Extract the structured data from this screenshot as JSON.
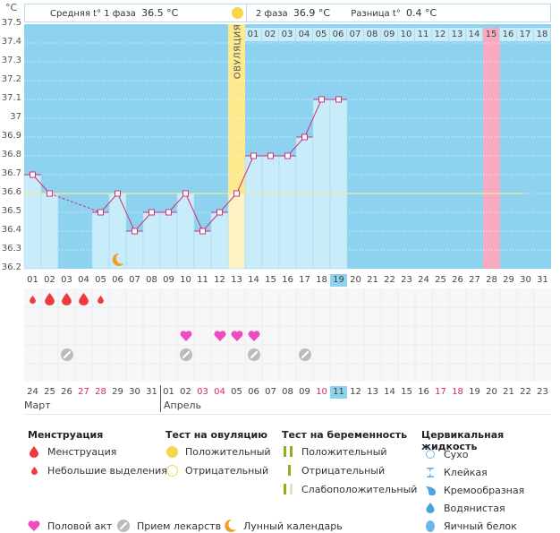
{
  "header": {
    "unit": "°C",
    "phase1_label": "Средняя t° 1 фаза",
    "phase1_value": "36.5 °C",
    "phase2_label": "2 фаза",
    "phase2_value": "36.9 °C",
    "diff_label": "Разница t°",
    "diff_value": "0.4 °C",
    "ovulation_label": "ОВУЛЯЦИЯ"
  },
  "chart_data": {
    "type": "line",
    "title": "",
    "xlabel": "Cycle day",
    "ylabel": "°C",
    "ylim": [
      36.2,
      37.5
    ],
    "y_ticks": [
      "37.5",
      "37.4",
      "37.3",
      "37.2",
      "37.1",
      "37",
      "36.9",
      "36.8",
      "36.7",
      "36.6",
      "36.5",
      "36.4",
      "36.3",
      "36.2"
    ],
    "cycle_days": [
      "01",
      "02",
      "03",
      "04",
      "05",
      "06",
      "07",
      "08",
      "09",
      "10",
      "11",
      "12",
      "13",
      "14",
      "15",
      "16",
      "17",
      "18",
      "19",
      "20",
      "21",
      "22",
      "23",
      "24",
      "25",
      "26",
      "27",
      "28",
      "29",
      "30",
      "31"
    ],
    "series": [
      {
        "name": "Базальная температура",
        "values": [
          36.7,
          36.6,
          null,
          null,
          36.5,
          36.6,
          36.4,
          36.5,
          36.5,
          36.6,
          36.4,
          36.5,
          36.6,
          36.8,
          36.8,
          36.8,
          36.9,
          37.1,
          37.1,
          null,
          null,
          null,
          null,
          null,
          null,
          null,
          null,
          null,
          null,
          null,
          null
        ]
      }
    ],
    "coverline": 36.6,
    "coverline_end_day": 30,
    "ovulation_day": 13,
    "current_day": 19,
    "expected_period_day": 28,
    "luteal_day_labels": [
      "01",
      "02",
      "03",
      "04",
      "05",
      "06",
      "07",
      "08",
      "09",
      "10",
      "11",
      "12",
      "13",
      "14",
      "15",
      "16",
      "17",
      "18"
    ],
    "luteal_highlight_label": "15",
    "calendar_dates": [
      "24",
      "25",
      "26",
      "27",
      "28",
      "29",
      "30",
      "31",
      "01",
      "02",
      "03",
      "04",
      "05",
      "06",
      "07",
      "08",
      "09",
      "10",
      "11",
      "12",
      "13",
      "14",
      "15",
      "16",
      "17",
      "18",
      "19",
      "20",
      "21",
      "22",
      "23"
    ],
    "weekend_dates_idx": [
      3,
      4,
      10,
      11,
      17,
      24,
      25
    ],
    "today_calendar_idx": 18,
    "months": [
      {
        "label": "Март",
        "start_idx": 0
      },
      {
        "label": "Апрель",
        "start_idx": 8
      }
    ],
    "menstruation": {
      "days": [
        1,
        2,
        3,
        4,
        5
      ],
      "types": [
        "light",
        "heavy",
        "heavy",
        "heavy",
        "light"
      ]
    },
    "intercourse_days": [
      10,
      12,
      13,
      14
    ],
    "medication_days": [
      3,
      10,
      14,
      17
    ],
    "moon_days": [
      6
    ],
    "colors": {
      "bg_empty": "#8dd3ef",
      "bar_fill": "#c9ecfa",
      "ovulation": "#fde98e",
      "expected_period": "#f8aac3",
      "line": "#d0307a",
      "coverline": "#f3e79c",
      "menstruation": "#ee3a3f",
      "heart": "#f04ac0",
      "pill": "#bcbcbc",
      "moon": "#f39b1c"
    }
  },
  "legend": {
    "menstruation": {
      "title": "Менструация",
      "items": [
        "Менструация",
        "Небольшие выделения"
      ]
    },
    "ovulation_test": {
      "title": "Тест на овуляцию",
      "items": [
        "Положительный",
        "Отрицательный"
      ]
    },
    "pregnancy_test": {
      "title": "Тест на беременность",
      "items": [
        "Положительный",
        "Отрицательный",
        "Слабоположительный"
      ]
    },
    "cervical_fluid": {
      "title": "Цервикальная жидкость",
      "items": [
        "Сухо",
        "Клейкая",
        "Кремообразная",
        "Водянистая",
        "Яичный белок"
      ]
    },
    "bottom": [
      "Половой акт",
      "Прием лекарств",
      "Лунный календарь"
    ]
  }
}
